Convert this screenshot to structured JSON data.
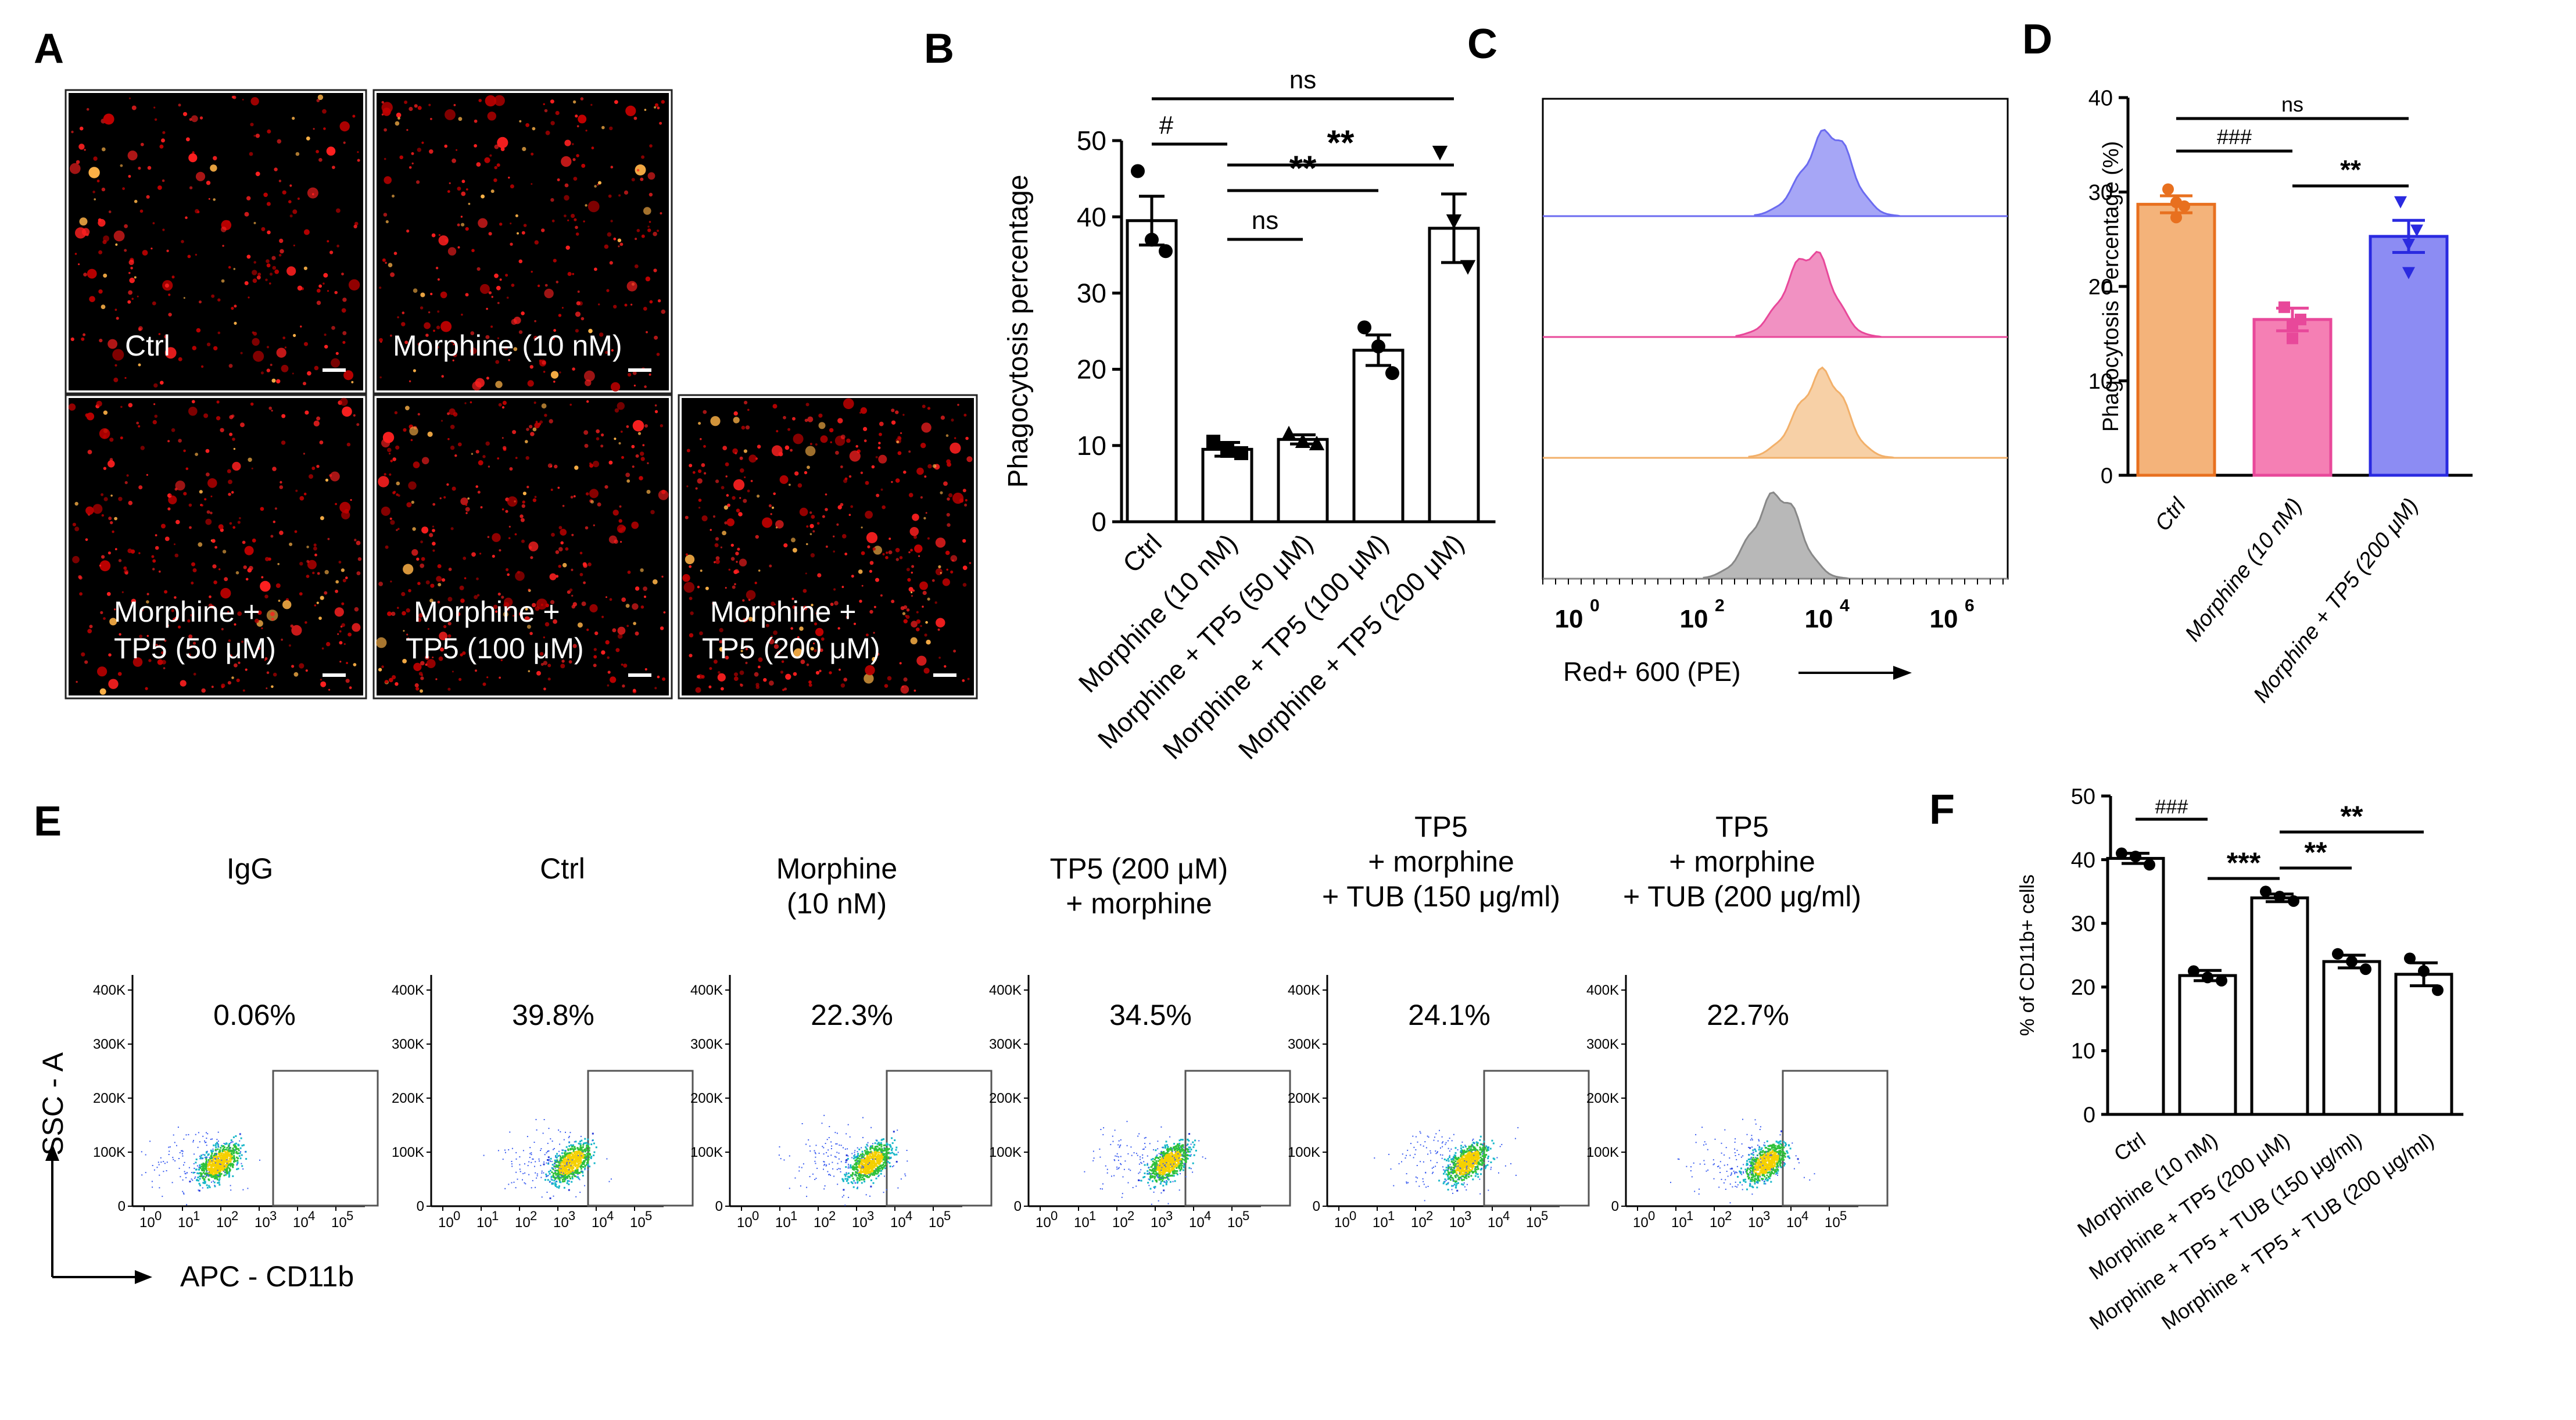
{
  "panels": {
    "A": "A",
    "B": "B",
    "C": "C",
    "D": "D",
    "E": "E",
    "F": "F"
  },
  "panel_a": {
    "captions": [
      [
        "Ctrl"
      ],
      [
        "Morphine (10 nM)"
      ],
      [
        "Morphine +",
        "TP5 (50 μM)"
      ],
      [
        "Morphine +",
        "TP5 (100 μM)"
      ],
      [
        "Morphine +",
        "TP5 (200 μM)"
      ]
    ]
  },
  "panel_c": {
    "xlabel": "Red+ 600 (PE)",
    "xticks": [
      [
        "10",
        "0"
      ],
      [
        "10",
        "2"
      ],
      [
        "10",
        "4"
      ],
      [
        "10",
        "6"
      ]
    ],
    "colors": [
      "#6b6bf0",
      "#e8489a",
      "#f2b06a",
      "#888888"
    ]
  },
  "panel_e": {
    "headers": [
      [
        "IgG"
      ],
      [
        "Ctrl"
      ],
      [
        "Morphine",
        "(10 nM)"
      ],
      [
        "TP5 (200 μM)",
        "+ morphine"
      ],
      [
        "TP5",
        "+ morphine",
        "+ TUB (150 μg/ml)"
      ],
      [
        "TP5",
        "+ morphine",
        "+ TUB (200 μg/ml)"
      ]
    ],
    "percents": [
      "0.06%",
      "39.8%",
      "22.3%",
      "34.5%",
      "24.1%",
      "22.7%"
    ],
    "yaxis_label": "SSC - A",
    "xaxis_label": "APC - CD11b",
    "yticks": [
      "0",
      "100K",
      "200K",
      "300K",
      "400K"
    ],
    "xticks": [
      "10",
      "10",
      "10",
      "10",
      "10",
      "10"
    ],
    "xexp": [
      "0",
      "1",
      "2",
      "3",
      "4",
      "5"
    ]
  },
  "chart_data": [
    {
      "id": "B",
      "type": "bar",
      "categories": [
        "Ctrl",
        "Morphine (10 nM)",
        "Morphine + TP5 (50 μM)",
        "Morphine + TP5 (100 μM)",
        "Morphine + TP5 (200 μM)"
      ],
      "values": [
        39.5,
        9.5,
        10.8,
        22.5,
        38.5
      ],
      "errors": [
        3.2,
        0.9,
        0.6,
        2.0,
        4.5
      ],
      "points": [
        [
          46,
          37,
          35.5
        ],
        [
          10.5,
          9.3,
          9.0
        ],
        [
          11.5,
          10.5,
          10.2
        ],
        [
          25.5,
          23.0,
          19.5
        ],
        [
          48.5,
          39.5,
          33.5
        ]
      ],
      "markers": [
        "circle",
        "square",
        "triangle",
        "circle",
        "triangle-down"
      ],
      "ylabel": "Phagocytosis percentage",
      "ylim": [
        0,
        50
      ],
      "yticks": [
        0,
        10,
        20,
        30,
        40,
        50
      ],
      "significance": [
        {
          "from": 0,
          "to": 4,
          "label": "ns"
        },
        {
          "from": 0,
          "to": 1,
          "label": "#"
        },
        {
          "from": 1,
          "to": 4,
          "label": "**"
        },
        {
          "from": 1,
          "to": 3,
          "label": "**"
        },
        {
          "from": 1,
          "to": 2,
          "label": "ns"
        }
      ]
    },
    {
      "id": "D",
      "type": "bar",
      "categories": [
        "Ctrl",
        "Morphine (10 nM)",
        "Morphine + TP5 (200 μM)"
      ],
      "values": [
        28.7,
        16.5,
        25.3
      ],
      "errors": [
        0.9,
        1.2,
        1.7
      ],
      "points": [
        [
          30.3,
          28.5,
          28.9,
          27.3
        ],
        [
          17.8,
          16.5,
          16.0,
          14.5
        ],
        [
          29.0,
          26.0,
          24.5,
          21.5
        ]
      ],
      "colors": [
        "#f4b37a",
        "#f57fb4",
        "#8c8cf3"
      ],
      "edge_colors": [
        "#e8701f",
        "#e8489a",
        "#2a2ae0"
      ],
      "ylabel": "Phagocytosis Percentage (%)",
      "ylim": [
        0,
        40
      ],
      "yticks": [
        0,
        10,
        20,
        30,
        40
      ],
      "significance": [
        {
          "from": 0,
          "to": 2,
          "label": "ns"
        },
        {
          "from": 0,
          "to": 1,
          "label": "###"
        },
        {
          "from": 1,
          "to": 2,
          "label": "**"
        }
      ]
    },
    {
      "id": "F",
      "type": "bar",
      "categories": [
        "Ctrl",
        "Morphine (10 nM)",
        "Morphine + TP5 (200 μM)",
        "Morphine + TP5 + TUB (150 μg/ml)",
        "Morphine + TP5 + TUB (200 μg/ml)"
      ],
      "values": [
        40.2,
        21.8,
        34.0,
        24.0,
        22.0
      ],
      "errors": [
        0.8,
        0.8,
        0.6,
        1.0,
        1.8
      ],
      "points": [
        [
          41.0,
          40.5,
          39.2
        ],
        [
          22.5,
          21.5,
          21.0
        ],
        [
          35.0,
          34.2,
          33.5
        ],
        [
          25.2,
          24.0,
          22.8
        ],
        [
          24.5,
          22.5,
          19.5
        ]
      ],
      "ylabel": "% of CD11b+ cells",
      "ylim": [
        0,
        50
      ],
      "yticks": [
        0,
        10,
        20,
        30,
        40,
        50
      ],
      "significance": [
        {
          "from": 0,
          "to": 1,
          "label": "###"
        },
        {
          "from": 1,
          "to": 2,
          "label": "***"
        },
        {
          "from": 2,
          "to": 3,
          "label": "**"
        },
        {
          "from": 2,
          "to": 4,
          "label": "**"
        }
      ]
    }
  ]
}
